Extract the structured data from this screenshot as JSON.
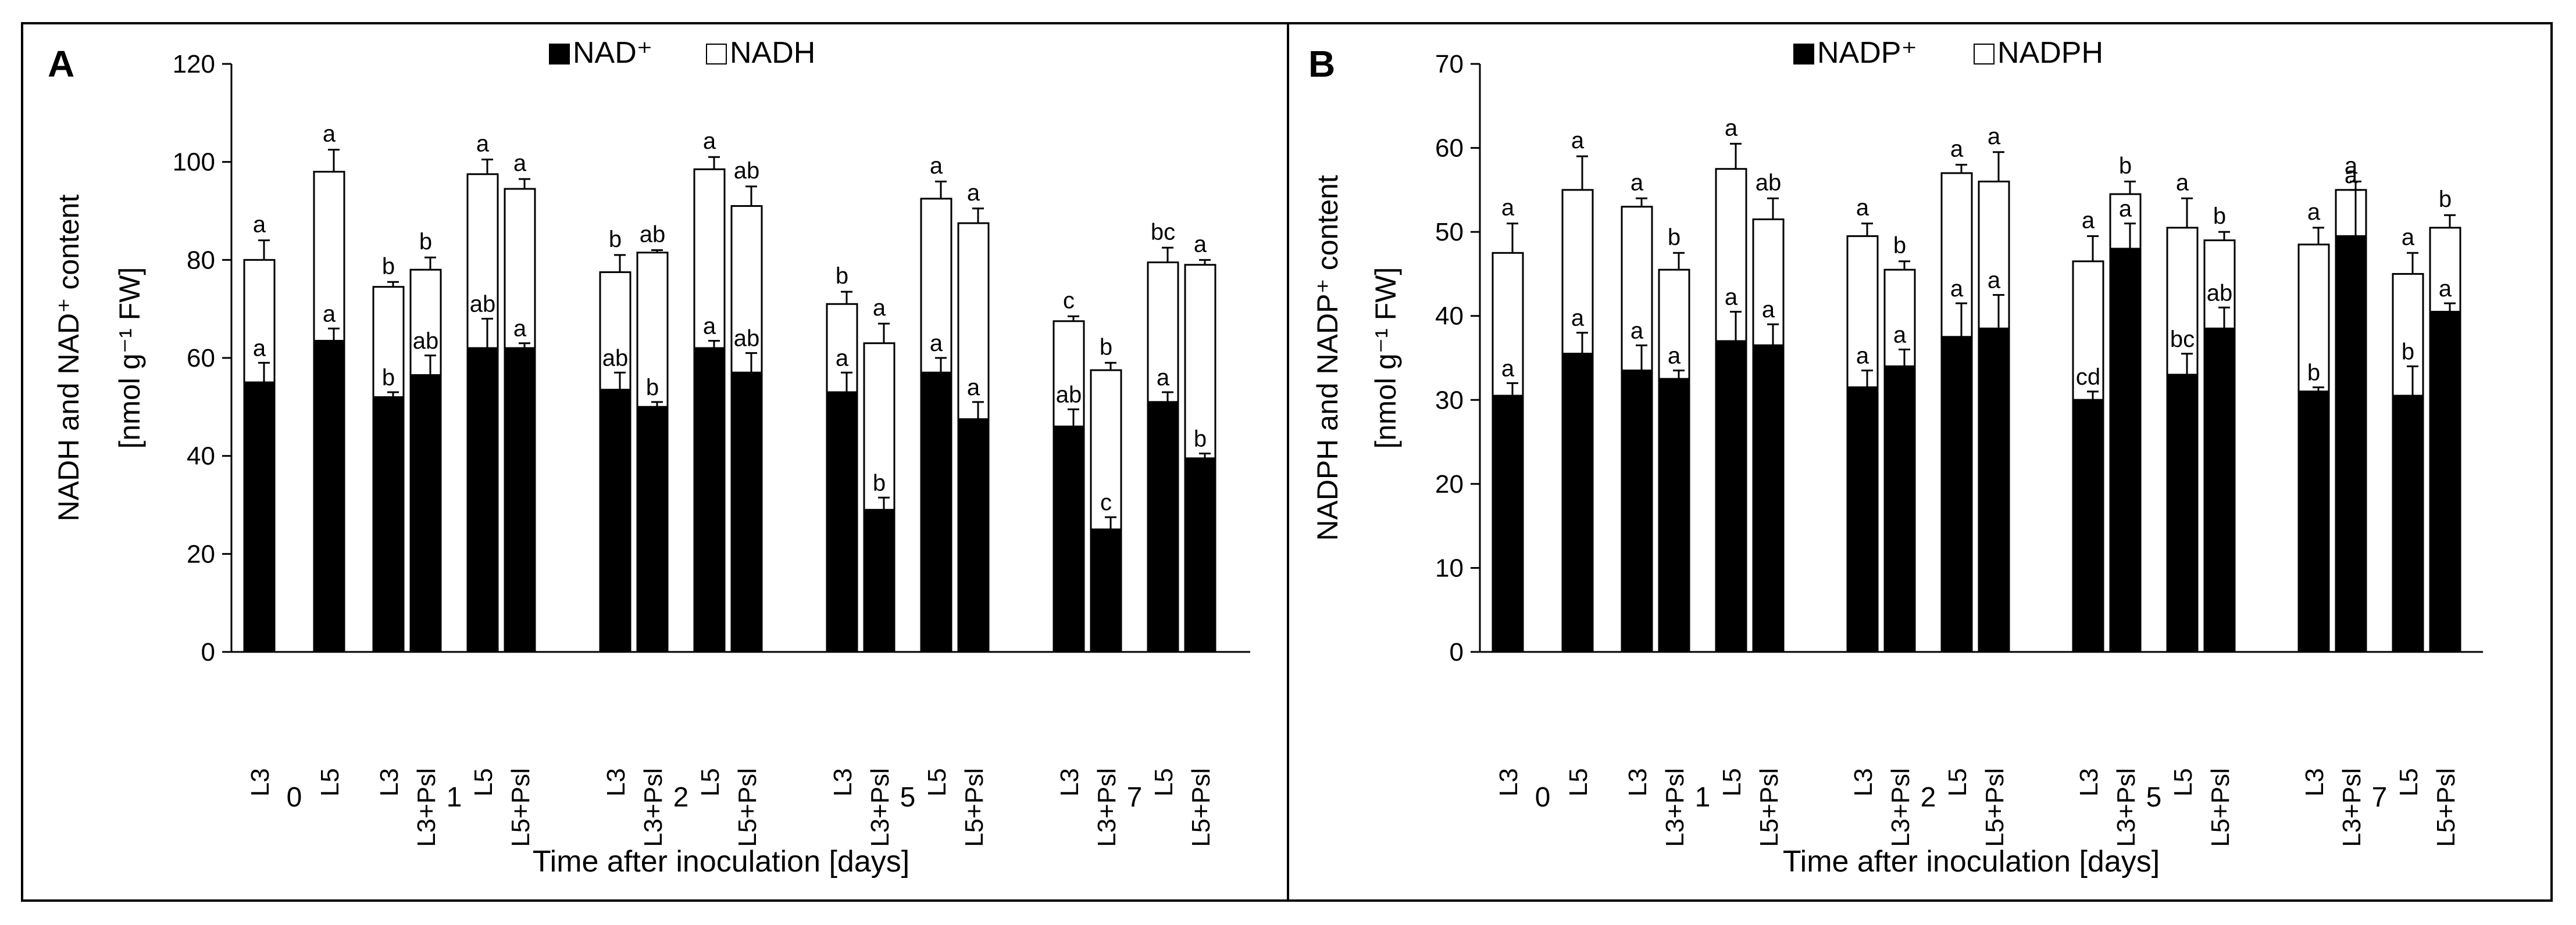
{
  "chart_data": [
    {
      "type": "bar",
      "panel_label": "A",
      "stacked": true,
      "ylim": [
        0,
        120
      ],
      "yticks": [
        0,
        20,
        40,
        60,
        80,
        100,
        120
      ],
      "ylabel": "NADH and NAD⁺ content",
      "ylabel2": "[nmol g⁻¹ FW]",
      "xlabel": "Time after inoculation [days]",
      "grid": false,
      "legend_position": "top-center",
      "series": [
        {
          "name": "NAD⁺",
          "color": "#000000"
        },
        {
          "name": "NADH",
          "color": "#ffffff"
        }
      ],
      "groups": [
        {
          "label": "0",
          "bars": [
            {
              "cat": "L3",
              "bottom": 55,
              "bottom_err": 4,
              "bottom_letter": "a",
              "total": 80,
              "total_err": 4,
              "top_letter": "a"
            },
            {
              "cat": "L5",
              "bottom": 63.5,
              "bottom_err": 2.5,
              "bottom_letter": "a",
              "total": 98,
              "total_err": 4.5,
              "top_letter": "a"
            }
          ]
        },
        {
          "label": "1",
          "bars": [
            {
              "cat": "L3",
              "bottom": 52,
              "bottom_err": 1,
              "bottom_letter": "b",
              "total": 74.5,
              "total_err": 1,
              "top_letter": "b"
            },
            {
              "cat": "L3+Psl",
              "bottom": 56.5,
              "bottom_err": 4,
              "bottom_letter": "ab",
              "total": 78,
              "total_err": 2.5,
              "top_letter": "b"
            },
            {
              "cat": "L5",
              "bottom": 62,
              "bottom_err": 6,
              "bottom_letter": "ab",
              "total": 97.5,
              "total_err": 3,
              "top_letter": "a"
            },
            {
              "cat": "L5+Psl",
              "bottom": 62,
              "bottom_err": 1,
              "bottom_letter": "a",
              "total": 94.5,
              "total_err": 2,
              "top_letter": "a"
            }
          ]
        },
        {
          "label": "2",
          "bars": [
            {
              "cat": "L3",
              "bottom": 53.5,
              "bottom_err": 3.5,
              "bottom_letter": "ab",
              "total": 77.5,
              "total_err": 3.5,
              "top_letter": "b"
            },
            {
              "cat": "L3+Psl",
              "bottom": 50,
              "bottom_err": 1,
              "bottom_letter": "b",
              "total": 81.5,
              "total_err": 0.5,
              "top_letter": "ab"
            },
            {
              "cat": "L5",
              "bottom": 62,
              "bottom_err": 1.5,
              "bottom_letter": "a",
              "total": 98.5,
              "total_err": 2.5,
              "top_letter": "a"
            },
            {
              "cat": "L5+Psl",
              "bottom": 57,
              "bottom_err": 4,
              "bottom_letter": "ab",
              "total": 91,
              "total_err": 4,
              "top_letter": "ab"
            }
          ]
        },
        {
          "label": "5",
          "bars": [
            {
              "cat": "L3",
              "bottom": 53,
              "bottom_err": 4,
              "bottom_letter": "a",
              "total": 71,
              "total_err": 2.5,
              "top_letter": "b"
            },
            {
              "cat": "L3+Psl",
              "bottom": 29,
              "bottom_err": 2.5,
              "bottom_letter": "b",
              "total": 63,
              "total_err": 4,
              "top_letter": "a"
            },
            {
              "cat": "L5",
              "bottom": 57,
              "bottom_err": 3,
              "bottom_letter": "a",
              "total": 92.5,
              "total_err": 3.5,
              "top_letter": "a"
            },
            {
              "cat": "L5+Psl",
              "bottom": 47.5,
              "bottom_err": 3.5,
              "bottom_letter": "a",
              "total": 87.5,
              "total_err": 3,
              "top_letter": "a"
            }
          ]
        },
        {
          "label": "7",
          "bars": [
            {
              "cat": "L3",
              "bottom": 46,
              "bottom_err": 3.5,
              "bottom_letter": "ab",
              "total": 67.5,
              "total_err": 1,
              "top_letter": "c"
            },
            {
              "cat": "L3+Psl",
              "bottom": 25,
              "bottom_err": 2.5,
              "bottom_letter": "c",
              "total": 57.5,
              "total_err": 1.5,
              "top_letter": "b"
            },
            {
              "cat": "L5",
              "bottom": 51,
              "bottom_err": 2,
              "bottom_letter": "a",
              "total": 79.5,
              "total_err": 3,
              "top_letter": "bc"
            },
            {
              "cat": "L5+Psl",
              "bottom": 39.5,
              "bottom_err": 1,
              "bottom_letter": "b",
              "total": 79,
              "total_err": 1,
              "top_letter": "a"
            }
          ]
        }
      ]
    },
    {
      "type": "bar",
      "panel_label": "B",
      "stacked": true,
      "ylim": [
        0,
        70
      ],
      "yticks": [
        0,
        10,
        20,
        30,
        40,
        50,
        60,
        70
      ],
      "ylabel": "NADPH and NADP⁺ content",
      "ylabel2": "[nmol g⁻¹ FW]",
      "xlabel": "Time after inoculation [days]",
      "grid": false,
      "legend_position": "top-center",
      "series": [
        {
          "name": "NADP⁺",
          "color": "#000000"
        },
        {
          "name": "NADPH",
          "color": "#ffffff"
        }
      ],
      "groups": [
        {
          "label": "0",
          "bars": [
            {
              "cat": "L3",
              "bottom": 30.5,
              "bottom_err": 1.5,
              "bottom_letter": "a",
              "total": 47.5,
              "total_err": 3.5,
              "top_letter": "a"
            },
            {
              "cat": "L5",
              "bottom": 35.5,
              "bottom_err": 2.5,
              "bottom_letter": "a",
              "total": 55,
              "total_err": 4,
              "top_letter": "a"
            }
          ]
        },
        {
          "label": "1",
          "bars": [
            {
              "cat": "L3",
              "bottom": 33.5,
              "bottom_err": 3,
              "bottom_letter": "a",
              "total": 53,
              "total_err": 1,
              "top_letter": "a"
            },
            {
              "cat": "L3+Psl",
              "bottom": 32.5,
              "bottom_err": 1,
              "bottom_letter": "a",
              "total": 45.5,
              "total_err": 2,
              "top_letter": "b"
            },
            {
              "cat": "L5",
              "bottom": 37,
              "bottom_err": 3.5,
              "bottom_letter": "a",
              "total": 57.5,
              "total_err": 3,
              "top_letter": "a"
            },
            {
              "cat": "L5+Psl",
              "bottom": 36.5,
              "bottom_err": 2.5,
              "bottom_letter": "a",
              "total": 51.5,
              "total_err": 2.5,
              "top_letter": "ab"
            }
          ]
        },
        {
          "label": "2",
          "bars": [
            {
              "cat": "L3",
              "bottom": 31.5,
              "bottom_err": 2,
              "bottom_letter": "a",
              "total": 49.5,
              "total_err": 1.5,
              "top_letter": "a"
            },
            {
              "cat": "L3+Psl",
              "bottom": 34,
              "bottom_err": 2,
              "bottom_letter": "a",
              "total": 45.5,
              "total_err": 1,
              "top_letter": "b"
            },
            {
              "cat": "L5",
              "bottom": 37.5,
              "bottom_err": 4,
              "bottom_letter": "a",
              "total": 57,
              "total_err": 1,
              "top_letter": "a"
            },
            {
              "cat": "L5+Psl",
              "bottom": 38.5,
              "bottom_err": 4,
              "bottom_letter": "a",
              "total": 56,
              "total_err": 3.5,
              "top_letter": "a"
            }
          ]
        },
        {
          "label": "5",
          "bars": [
            {
              "cat": "L3",
              "bottom": 30,
              "bottom_err": 1,
              "bottom_letter": "cd",
              "total": 46.5,
              "total_err": 3,
              "top_letter": "a"
            },
            {
              "cat": "L3+Psl",
              "bottom": 48,
              "bottom_err": 3,
              "bottom_letter": "a",
              "total": 54.5,
              "total_err": 1.5,
              "top_letter": "b"
            },
            {
              "cat": "L5",
              "bottom": 33,
              "bottom_err": 2.5,
              "bottom_letter": "bc",
              "total": 50.5,
              "total_err": 3.5,
              "top_letter": "a"
            },
            {
              "cat": "L5+Psl",
              "bottom": 38.5,
              "bottom_err": 2.5,
              "bottom_letter": "ab",
              "total": 49,
              "total_err": 1,
              "top_letter": "b"
            }
          ]
        },
        {
          "label": "7",
          "bars": [
            {
              "cat": "L3",
              "bottom": 31,
              "bottom_err": 0.5,
              "bottom_letter": "b",
              "total": 48.5,
              "total_err": 2,
              "top_letter": "a"
            },
            {
              "cat": "L3+Psl",
              "bottom": 49.5,
              "bottom_err": 5.5,
              "bottom_letter": "a",
              "total": 55,
              "total_err": 1,
              "top_letter": "a"
            },
            {
              "cat": "L5",
              "bottom": 30.5,
              "bottom_err": 3.5,
              "bottom_letter": "b",
              "total": 45,
              "total_err": 2.5,
              "top_letter": "a"
            },
            {
              "cat": "L5+Psl",
              "bottom": 40.5,
              "bottom_err": 1,
              "bottom_letter": "a",
              "total": 50.5,
              "total_err": 1.5,
              "top_letter": "b"
            }
          ]
        }
      ]
    }
  ]
}
